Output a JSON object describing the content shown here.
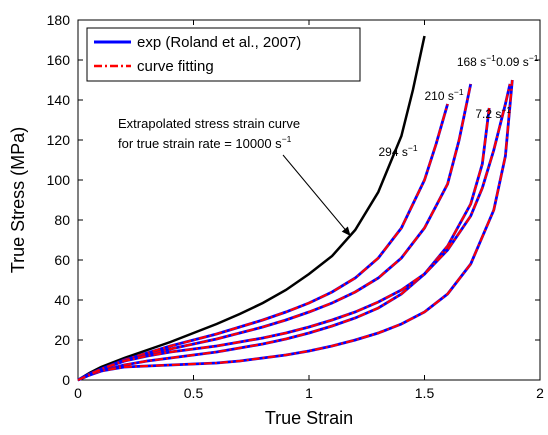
{
  "chart_data": {
    "type": "line",
    "xlabel": "True Strain",
    "ylabel": "True Stress (MPa)",
    "xlim": [
      0,
      2
    ],
    "ylim": [
      0,
      180
    ],
    "xticks": [
      "0",
      "0.5",
      "1",
      "1.5",
      "2"
    ],
    "yticks": [
      "0",
      "20",
      "40",
      "60",
      "80",
      "100",
      "120",
      "140",
      "160",
      "180"
    ],
    "grid": false,
    "legend": {
      "placement": "top-left",
      "entries": [
        {
          "label": "exp (Roland et al., 2007)",
          "style": "solid",
          "color": "#0000ff"
        },
        {
          "label": "curve fitting",
          "style": "dash-dot",
          "color": "#ff0000"
        }
      ]
    },
    "annotation": {
      "line1": "Extrapolated stress strain curve",
      "line2_prefix": "for true strain rate = 10000 s",
      "line2_sup": "−1",
      "arrow_tip": [
        1.18,
        72
      ]
    },
    "series": [
      {
        "kind": "extrapolated",
        "color": "#000000",
        "x": [
          0,
          0.05,
          0.1,
          0.2,
          0.3,
          0.4,
          0.5,
          0.6,
          0.7,
          0.8,
          0.9,
          1.0,
          1.1,
          1.2,
          1.3,
          1.4,
          1.45,
          1.5
        ],
        "y": [
          0,
          3.5,
          6.5,
          11,
          15,
          19,
          23.5,
          28,
          33,
          38.5,
          45,
          53,
          62,
          75,
          94,
          122,
          145,
          172
        ]
      },
      {
        "rate_base": "294 s",
        "rate_sup": "−1",
        "color": "#0000ff",
        "x": [
          0,
          0.05,
          0.1,
          0.2,
          0.3,
          0.4,
          0.5,
          0.6,
          0.7,
          0.8,
          0.9,
          1.0,
          1.1,
          1.2,
          1.3,
          1.4,
          1.5,
          1.55,
          1.6
        ],
        "y": [
          0,
          3,
          5.5,
          10,
          13.5,
          17,
          20,
          23,
          26.5,
          30,
          34,
          38.5,
          44,
          51,
          61,
          76,
          100,
          118,
          138
        ]
      },
      {
        "rate_base": "210 s",
        "rate_sup": "−1",
        "color": "#0000ff",
        "x": [
          0,
          0.05,
          0.1,
          0.2,
          0.3,
          0.4,
          0.5,
          0.6,
          0.7,
          0.8,
          0.9,
          1.0,
          1.1,
          1.2,
          1.3,
          1.4,
          1.5,
          1.6,
          1.65,
          1.7
        ],
        "y": [
          0,
          3,
          5.5,
          9.5,
          12.5,
          15.5,
          18,
          20.5,
          23.5,
          26.5,
          30,
          34,
          38.5,
          44,
          51,
          61,
          76,
          98,
          120,
          148
        ]
      },
      {
        "rate_base": "168 s",
        "rate_sup": "−1",
        "color": "#0000ff",
        "x": [
          0,
          0.05,
          0.1,
          0.2,
          0.3,
          0.4,
          0.5,
          0.6,
          0.7,
          0.8,
          0.9,
          1.0,
          1.1,
          1.2,
          1.3,
          1.4,
          1.5,
          1.6,
          1.7,
          1.75,
          1.78
        ],
        "y": [
          0,
          2.5,
          4.5,
          7.5,
          9.5,
          11,
          12.5,
          14,
          16,
          18,
          20.5,
          23.5,
          27,
          31,
          36,
          43,
          53,
          67,
          88,
          108,
          136
        ]
      },
      {
        "rate_base": "7.2 s",
        "rate_sup": "−1",
        "color": "#0000ff",
        "x": [
          0,
          0.05,
          0.1,
          0.2,
          0.3,
          0.4,
          0.5,
          0.6,
          0.7,
          0.8,
          0.9,
          1.0,
          1.1,
          1.2,
          1.3,
          1.4,
          1.5,
          1.6,
          1.7,
          1.8,
          1.85,
          1.88
        ],
        "y": [
          0,
          2.5,
          4.5,
          6.5,
          7,
          7.5,
          8,
          8.5,
          9.5,
          11,
          12.5,
          14.5,
          17,
          20,
          23.5,
          28,
          34,
          43,
          58,
          85,
          112,
          150
        ]
      },
      {
        "rate_base": "0.09 s",
        "rate_sup": "−1",
        "color": "#0000ff",
        "x": [
          0,
          0.05,
          0.1,
          0.2,
          0.3,
          0.4,
          0.5,
          0.6,
          0.7,
          0.8,
          0.9,
          1.0,
          1.1,
          1.2,
          1.3,
          1.4,
          1.5,
          1.6,
          1.7,
          1.75,
          1.8,
          1.85,
          1.87
        ],
        "y": [
          0,
          2.5,
          5.5,
          9.5,
          12,
          14,
          15.5,
          17,
          19,
          21,
          23.5,
          26.5,
          30,
          34,
          39,
          45,
          53,
          65,
          82,
          96,
          115,
          138,
          148
        ]
      }
    ]
  }
}
